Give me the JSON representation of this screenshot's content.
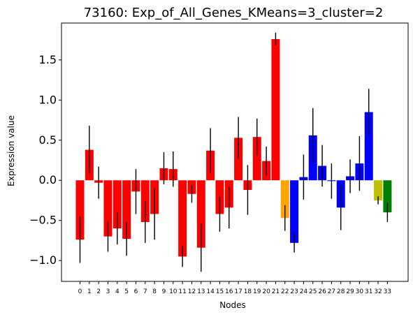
{
  "chart_data": {
    "type": "bar",
    "title": "73160: Exp_of_All_Genes_KMeans=3_cluster=2",
    "xlabel": "Nodes",
    "ylabel": "Expression value",
    "ylim": [
      -1.26,
      1.96
    ],
    "y_ticks": [
      -1.0,
      -0.5,
      0.0,
      0.5,
      1.0,
      1.5
    ],
    "y_tick_labels": [
      "−1.0",
      "−0.5",
      "0.0",
      "0.5",
      "1.0",
      "1.5"
    ],
    "grid": false,
    "legend": "none",
    "categories": [
      "0",
      "1",
      "2",
      "3",
      "4",
      "5",
      "6",
      "7",
      "8",
      "9",
      "10",
      "11",
      "12",
      "13",
      "14",
      "15",
      "16",
      "17",
      "18",
      "19",
      "20",
      "21",
      "22",
      "23",
      "24",
      "25",
      "26",
      "27",
      "28",
      "29",
      "30",
      "31",
      "32",
      "33"
    ],
    "values": [
      -0.74,
      0.38,
      -0.03,
      -0.7,
      -0.6,
      -0.73,
      -0.14,
      -0.52,
      -0.42,
      0.15,
      0.14,
      -0.95,
      -0.17,
      -0.84,
      0.37,
      -0.42,
      -0.34,
      0.53,
      -0.12,
      0.54,
      0.24,
      1.76,
      -0.47,
      -0.78,
      0.04,
      0.56,
      0.18,
      -0.01,
      -0.34,
      0.05,
      0.21,
      0.85,
      -0.25,
      -0.4
    ],
    "error": [
      0.29,
      0.3,
      0.2,
      0.19,
      0.2,
      0.21,
      0.28,
      0.26,
      0.32,
      0.2,
      0.22,
      0.13,
      0.11,
      0.3,
      0.28,
      0.22,
      0.26,
      0.26,
      0.31,
      0.23,
      0.18,
      0.08,
      0.16,
      0.12,
      0.28,
      0.34,
      0.26,
      0.22,
      0.28,
      0.21,
      0.34,
      0.29,
      0.05,
      0.12
    ],
    "colors": [
      "#ff0000",
      "#ff0000",
      "#ff0000",
      "#ff0000",
      "#ff0000",
      "#ff0000",
      "#ff0000",
      "#ff0000",
      "#ff0000",
      "#ff0000",
      "#ff0000",
      "#ff0000",
      "#ff0000",
      "#ff0000",
      "#ff0000",
      "#ff0000",
      "#ff0000",
      "#ff0000",
      "#ff0000",
      "#ff0000",
      "#ff0000",
      "#ff0000",
      "#ffa500",
      "#0000ff",
      "#0000ff",
      "#0000ff",
      "#0000ff",
      "#0000ff",
      "#0000ff",
      "#0000ff",
      "#0000ff",
      "#0000ff",
      "#bfbf00",
      "#008000"
    ],
    "error_color": "#000000"
  }
}
